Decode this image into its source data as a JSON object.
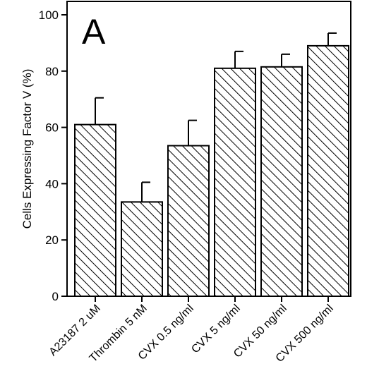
{
  "chart_data": {
    "type": "bar",
    "panel_label": "A",
    "ylabel": "Cells Expressing Factor V   (%)",
    "xlabel": "",
    "ylim": [
      0,
      100
    ],
    "yticks": [
      0,
      20,
      40,
      60,
      80,
      100
    ],
    "categories": [
      "A23187 2 uM",
      "Thrombin 5 nM",
      "CVX 0.5 ng/ml",
      "CVX 5 ng/ml",
      "CVX 50 ng/ml",
      "CVX 500 ng/ml"
    ],
    "values": [
      61,
      33.5,
      53.5,
      81,
      81.5,
      89
    ],
    "errors": [
      9.5,
      7,
      9,
      6,
      4.5,
      4.5
    ],
    "bar_fill": "diagonal-hatch",
    "colors": {
      "stroke": "#000000",
      "background": "#ffffff"
    },
    "grid": false
  }
}
